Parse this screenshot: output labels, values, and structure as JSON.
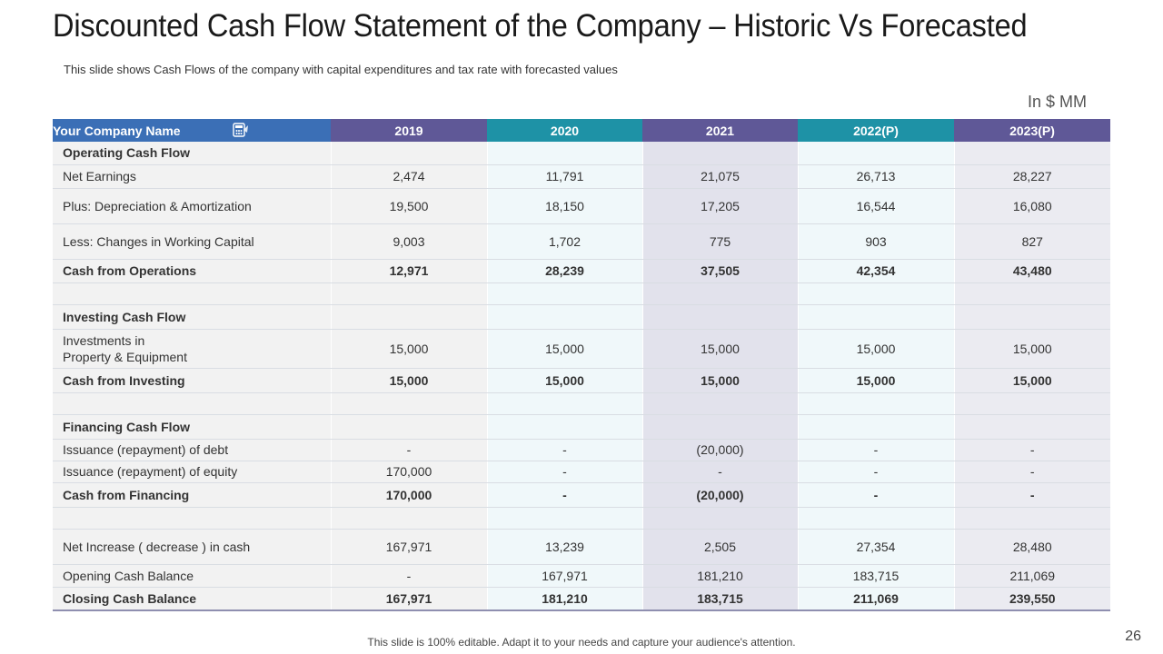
{
  "title": "Discounted Cash Flow Statement of the Company – Historic Vs Forecasted",
  "subtitle": "This slide shows Cash Flows of the company with capital expenditures and tax rate with forecasted values",
  "units": "In $ MM",
  "header": {
    "name": "Your Company Name",
    "icon": "calculator-icon",
    "years": [
      "2019",
      "2020",
      "2021",
      "2022(P)",
      "2023(P)"
    ]
  },
  "colors": {
    "header_name": "#3b6fb6",
    "header_purple": "#5f5897",
    "header_teal": "#1e92a6"
  },
  "rows": [
    {
      "label": "Operating Cash Flow",
      "values": [
        "",
        "",
        "",
        "",
        ""
      ],
      "bold": true
    },
    {
      "label": "Net Earnings",
      "values": [
        "2,474",
        "11,791",
        "21,075",
        "26,713",
        "28,227"
      ],
      "bold": false
    },
    {
      "label": "Plus: Depreciation & Amortization",
      "values": [
        "19,500",
        "18,150",
        "17,205",
        "16,544",
        "16,080"
      ],
      "bold": false
    },
    {
      "label": "Less: Changes in Working Capital",
      "values": [
        "9,003",
        "1,702",
        "775",
        "903",
        "827"
      ],
      "bold": false
    },
    {
      "label": "Cash from Operations",
      "values": [
        "12,971",
        "28,239",
        "37,505",
        "42,354",
        "43,480"
      ],
      "bold": true
    },
    {
      "label": "",
      "values": [
        "",
        "",
        "",
        "",
        ""
      ],
      "bold": false
    },
    {
      "label": "Investing Cash Flow",
      "values": [
        "",
        "",
        "",
        "",
        ""
      ],
      "bold": true
    },
    {
      "label": "Investments in\nProperty & Equipment",
      "values": [
        "15,000",
        "15,000",
        "15,000",
        "15,000",
        "15,000"
      ],
      "bold": false
    },
    {
      "label": "Cash from Investing",
      "values": [
        "15,000",
        "15,000",
        "15,000",
        "15,000",
        "15,000"
      ],
      "bold": true
    },
    {
      "label": "",
      "values": [
        "",
        "",
        "",
        "",
        ""
      ],
      "bold": false
    },
    {
      "label": "Financing Cash Flow",
      "values": [
        "",
        "",
        "",
        "",
        ""
      ],
      "bold": true
    },
    {
      "label": "Issuance (repayment) of debt",
      "values": [
        "-",
        "-",
        "(20,000)",
        "-",
        "-"
      ],
      "bold": false
    },
    {
      "label": "Issuance (repayment) of equity",
      "values": [
        "170,000",
        "-",
        "-",
        "-",
        "-"
      ],
      "bold": false
    },
    {
      "label": "Cash from Financing",
      "values": [
        "170,000",
        "-",
        "(20,000)",
        "-",
        "-"
      ],
      "bold": true
    },
    {
      "label": "",
      "values": [
        "",
        "",
        "",
        "",
        ""
      ],
      "bold": false
    },
    {
      "label": "Net Increase ( decrease ) in cash",
      "values": [
        "167,971",
        "13,239",
        "2,505",
        "27,354",
        "28,480"
      ],
      "bold": false
    },
    {
      "label": "Opening Cash Balance",
      "values": [
        "-",
        "167,971",
        "181,210",
        "183,715",
        "211,069"
      ],
      "bold": false
    },
    {
      "label": "Closing Cash Balance",
      "values": [
        "167,971",
        "181,210",
        "183,715",
        "211,069",
        "239,550"
      ],
      "bold": true
    }
  ],
  "footer": "This slide is 100% editable. Adapt it to your needs and capture your audience's attention.",
  "page_number": "26"
}
